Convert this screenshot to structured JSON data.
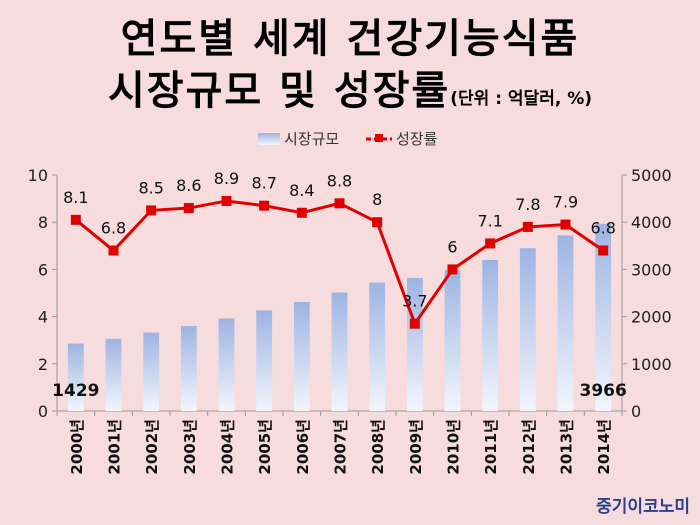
{
  "title_line1": "연도별 세계 건강기능식품",
  "title_line2": "시장규모 및 성장률",
  "unit_note": "(단위 : 억달러, %)",
  "logo": "중기이코노미",
  "chart_data": {
    "type": "bar",
    "categories": [
      "2000년",
      "2001년",
      "2002년",
      "2003년",
      "2004년",
      "2005년",
      "2006년",
      "2007년",
      "2008년",
      "2009년",
      "2010년",
      "2011년",
      "2012년",
      "2013년",
      "2014년"
    ],
    "series": [
      {
        "name": "시장규모",
        "type": "bar",
        "axis": "right",
        "values": [
          1429,
          1530,
          1660,
          1800,
          1960,
          2130,
          2310,
          2510,
          2720,
          2820,
          2990,
          3200,
          3450,
          3720,
          3966
        ],
        "value_labels": {
          "0": "1429",
          "14": "3966"
        },
        "color": "#9db4e2"
      },
      {
        "name": "성장률",
        "type": "line",
        "axis": "left",
        "values": [
          8.1,
          6.8,
          8.5,
          8.6,
          8.9,
          8.7,
          8.4,
          8.8,
          8,
          3.7,
          6,
          7.1,
          7.8,
          7.9,
          6.8
        ],
        "color": "#e00000"
      }
    ],
    "y_left": {
      "min": 0,
      "max": 10,
      "ticks": [
        "0",
        "2",
        "4",
        "6",
        "8",
        "10"
      ]
    },
    "y_right": {
      "min": 0,
      "max": 5000,
      "ticks": [
        "0",
        "1000",
        "2000",
        "3000",
        "4000",
        "5000"
      ]
    },
    "legend_position": "top-center",
    "grid": false
  }
}
